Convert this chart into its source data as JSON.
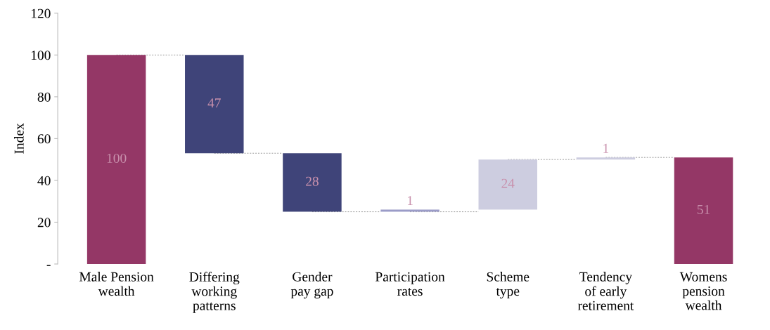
{
  "chart_data": {
    "type": "bar",
    "ylabel": "Index",
    "categories": [
      "Male Pension\nwealth",
      "Differing\nworking\npatterns",
      "Gender\npay gap",
      "Participation\nrates",
      "Scheme\ntype",
      "Tendency\nof early\nretirement",
      "Womens\npension\nwealth"
    ],
    "values": [
      100,
      -47,
      -28,
      -1,
      24,
      1,
      51
    ],
    "base": [
      0,
      100,
      53,
      26,
      26,
      50,
      0
    ],
    "colors": [
      "#943766",
      "#3f4479",
      "#3f4479",
      "#9b9cc8",
      "#cdcde0",
      "#cdcde0",
      "#943766"
    ],
    "value_labels": [
      "100",
      "47",
      "28",
      "1",
      "24",
      "1",
      "51"
    ],
    "ylim": [
      0,
      120
    ],
    "yticks": [
      {
        "value": 0,
        "label": "-"
      },
      20,
      40,
      60,
      80,
      100,
      120
    ],
    "grid": false,
    "legend": false
  }
}
